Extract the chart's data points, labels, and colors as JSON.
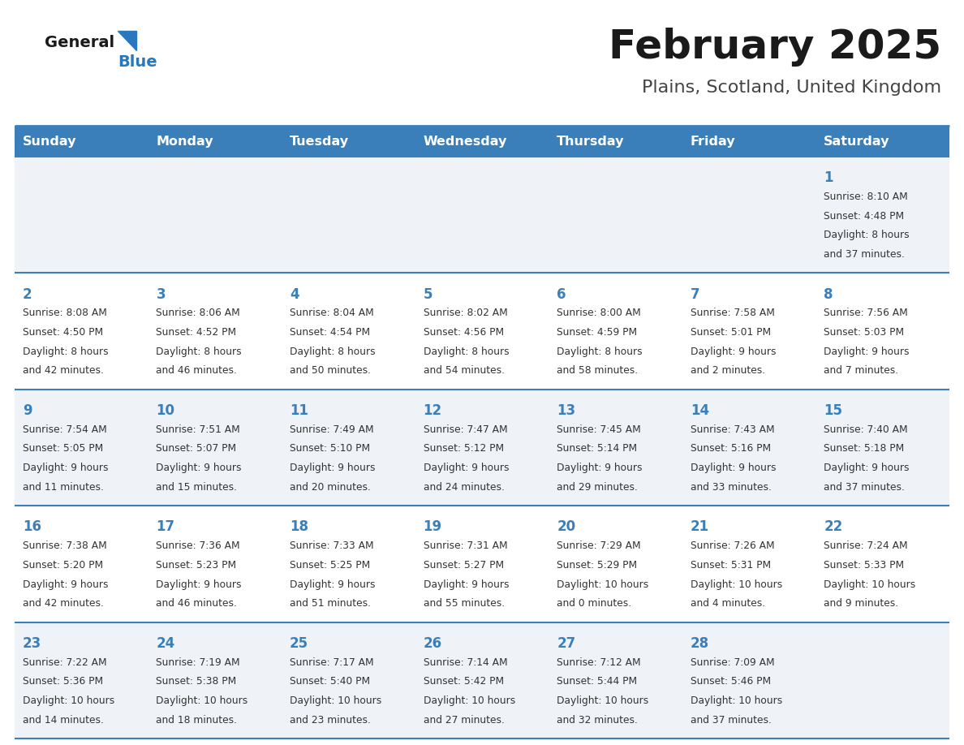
{
  "title": "February 2025",
  "subtitle": "Plains, Scotland, United Kingdom",
  "days_of_week": [
    "Sunday",
    "Monday",
    "Tuesday",
    "Wednesday",
    "Thursday",
    "Friday",
    "Saturday"
  ],
  "header_bg": "#3a7fba",
  "header_text": "#ffffff",
  "row0_bg": "#eff3f8",
  "row1_bg": "#ffffff",
  "row2_bg": "#eff3f8",
  "row3_bg": "#ffffff",
  "row4_bg": "#eff3f8",
  "cell_border": "#3a7fba",
  "day_num_color": "#3a7fba",
  "info_text_color": "#333333",
  "title_color": "#1a1a1a",
  "subtitle_color": "#444444",
  "logo_general_color": "#1a1a1a",
  "logo_blue_color": "#2878c0",
  "calendar_data": [
    [
      null,
      null,
      null,
      null,
      null,
      null,
      {
        "day": 1,
        "sunrise": "8:10 AM",
        "sunset": "4:48 PM",
        "daylight_h": "8 hours",
        "daylight_m": "and 37 minutes."
      }
    ],
    [
      {
        "day": 2,
        "sunrise": "8:08 AM",
        "sunset": "4:50 PM",
        "daylight_h": "8 hours",
        "daylight_m": "and 42 minutes."
      },
      {
        "day": 3,
        "sunrise": "8:06 AM",
        "sunset": "4:52 PM",
        "daylight_h": "8 hours",
        "daylight_m": "and 46 minutes."
      },
      {
        "day": 4,
        "sunrise": "8:04 AM",
        "sunset": "4:54 PM",
        "daylight_h": "8 hours",
        "daylight_m": "and 50 minutes."
      },
      {
        "day": 5,
        "sunrise": "8:02 AM",
        "sunset": "4:56 PM",
        "daylight_h": "8 hours",
        "daylight_m": "and 54 minutes."
      },
      {
        "day": 6,
        "sunrise": "8:00 AM",
        "sunset": "4:59 PM",
        "daylight_h": "8 hours",
        "daylight_m": "and 58 minutes."
      },
      {
        "day": 7,
        "sunrise": "7:58 AM",
        "sunset": "5:01 PM",
        "daylight_h": "9 hours",
        "daylight_m": "and 2 minutes."
      },
      {
        "day": 8,
        "sunrise": "7:56 AM",
        "sunset": "5:03 PM",
        "daylight_h": "9 hours",
        "daylight_m": "and 7 minutes."
      }
    ],
    [
      {
        "day": 9,
        "sunrise": "7:54 AM",
        "sunset": "5:05 PM",
        "daylight_h": "9 hours",
        "daylight_m": "and 11 minutes."
      },
      {
        "day": 10,
        "sunrise": "7:51 AM",
        "sunset": "5:07 PM",
        "daylight_h": "9 hours",
        "daylight_m": "and 15 minutes."
      },
      {
        "day": 11,
        "sunrise": "7:49 AM",
        "sunset": "5:10 PM",
        "daylight_h": "9 hours",
        "daylight_m": "and 20 minutes."
      },
      {
        "day": 12,
        "sunrise": "7:47 AM",
        "sunset": "5:12 PM",
        "daylight_h": "9 hours",
        "daylight_m": "and 24 minutes."
      },
      {
        "day": 13,
        "sunrise": "7:45 AM",
        "sunset": "5:14 PM",
        "daylight_h": "9 hours",
        "daylight_m": "and 29 minutes."
      },
      {
        "day": 14,
        "sunrise": "7:43 AM",
        "sunset": "5:16 PM",
        "daylight_h": "9 hours",
        "daylight_m": "and 33 minutes."
      },
      {
        "day": 15,
        "sunrise": "7:40 AM",
        "sunset": "5:18 PM",
        "daylight_h": "9 hours",
        "daylight_m": "and 37 minutes."
      }
    ],
    [
      {
        "day": 16,
        "sunrise": "7:38 AM",
        "sunset": "5:20 PM",
        "daylight_h": "9 hours",
        "daylight_m": "and 42 minutes."
      },
      {
        "day": 17,
        "sunrise": "7:36 AM",
        "sunset": "5:23 PM",
        "daylight_h": "9 hours",
        "daylight_m": "and 46 minutes."
      },
      {
        "day": 18,
        "sunrise": "7:33 AM",
        "sunset": "5:25 PM",
        "daylight_h": "9 hours",
        "daylight_m": "and 51 minutes."
      },
      {
        "day": 19,
        "sunrise": "7:31 AM",
        "sunset": "5:27 PM",
        "daylight_h": "9 hours",
        "daylight_m": "and 55 minutes."
      },
      {
        "day": 20,
        "sunrise": "7:29 AM",
        "sunset": "5:29 PM",
        "daylight_h": "10 hours",
        "daylight_m": "and 0 minutes."
      },
      {
        "day": 21,
        "sunrise": "7:26 AM",
        "sunset": "5:31 PM",
        "daylight_h": "10 hours",
        "daylight_m": "and 4 minutes."
      },
      {
        "day": 22,
        "sunrise": "7:24 AM",
        "sunset": "5:33 PM",
        "daylight_h": "10 hours",
        "daylight_m": "and 9 minutes."
      }
    ],
    [
      {
        "day": 23,
        "sunrise": "7:22 AM",
        "sunset": "5:36 PM",
        "daylight_h": "10 hours",
        "daylight_m": "and 14 minutes."
      },
      {
        "day": 24,
        "sunrise": "7:19 AM",
        "sunset": "5:38 PM",
        "daylight_h": "10 hours",
        "daylight_m": "and 18 minutes."
      },
      {
        "day": 25,
        "sunrise": "7:17 AM",
        "sunset": "5:40 PM",
        "daylight_h": "10 hours",
        "daylight_m": "and 23 minutes."
      },
      {
        "day": 26,
        "sunrise": "7:14 AM",
        "sunset": "5:42 PM",
        "daylight_h": "10 hours",
        "daylight_m": "and 27 minutes."
      },
      {
        "day": 27,
        "sunrise": "7:12 AM",
        "sunset": "5:44 PM",
        "daylight_h": "10 hours",
        "daylight_m": "and 32 minutes."
      },
      {
        "day": 28,
        "sunrise": "7:09 AM",
        "sunset": "5:46 PM",
        "daylight_h": "10 hours",
        "daylight_m": "and 37 minutes."
      },
      null
    ]
  ]
}
